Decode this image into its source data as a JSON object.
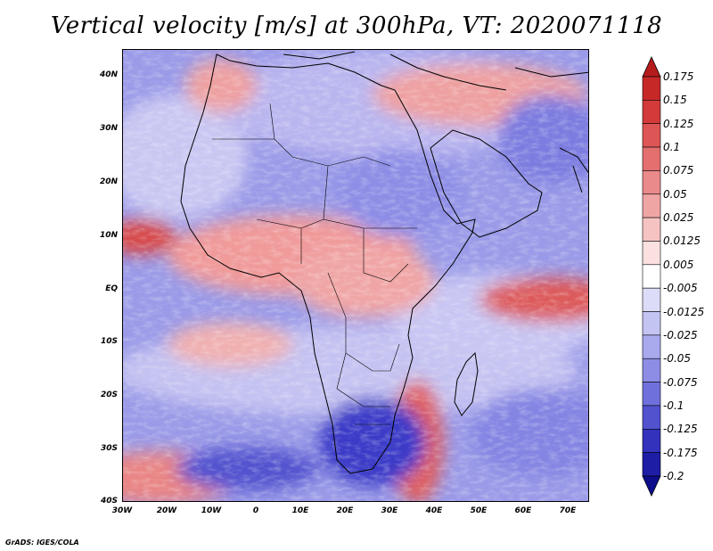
{
  "title": "Vertical velocity [m/s] at 300hPa, VT: 2020071118",
  "lat_labels": [
    "40N",
    "30N",
    "20N",
    "10N",
    "EQ",
    "10S",
    "20S",
    "30S",
    "40S"
  ],
  "lon_labels": [
    "30W",
    "20W",
    "10W",
    "0",
    "10E",
    "20E",
    "30E",
    "40E",
    "50E",
    "60E",
    "70E"
  ],
  "map_extent": {
    "lon_min": -30,
    "lon_max": 75,
    "lat_min": -40,
    "lat_max": 45
  },
  "colorbar": {
    "labels": [
      "0.175",
      "0.15",
      "0.125",
      "0.1",
      "0.075",
      "0.05",
      "0.025",
      "0.0125",
      "0.005",
      "-0.005",
      "-0.0125",
      "-0.025",
      "-0.05",
      "-0.075",
      "-0.1",
      "-0.125",
      "-0.175",
      "-0.2"
    ],
    "colors": [
      "#b71c1c",
      "#c62828",
      "#d33b3b",
      "#dd5555",
      "#e36f6f",
      "#ea8a8a",
      "#f0a5a5",
      "#f6c3c3",
      "#fbe0e0",
      "#ffffff",
      "#dcdcf8",
      "#c4c4f3",
      "#a9a9ee",
      "#8d8de6",
      "#7070dc",
      "#5252cf",
      "#3232bd",
      "#1d1da6",
      "#0d0d8c"
    ]
  },
  "footer": "GrADS: IGES/COLA",
  "colors": {
    "positive": "#e05050",
    "negative": "#5a5ae0",
    "neutral": "#f4f2ff"
  }
}
